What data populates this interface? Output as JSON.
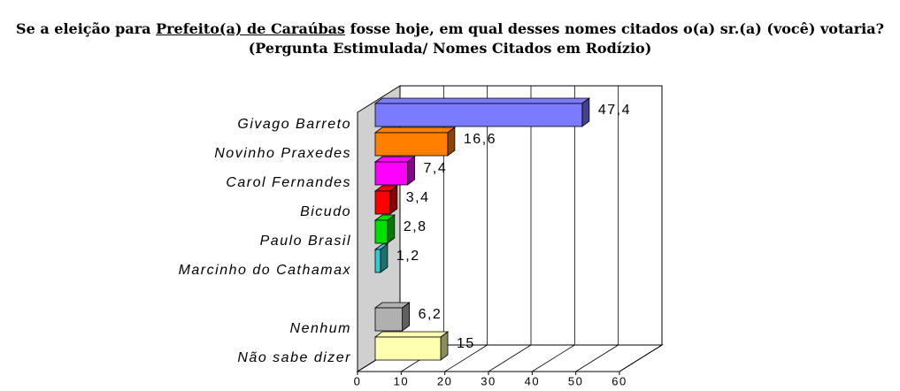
{
  "chart_data": {
    "type": "bar3d-horizontal",
    "title": [
      "Se a eleição para ",
      "Prefeito(a) de Caraúbas",
      " fosse hoje, em qual desses nomes citados o(a) sr.(a) (você) votaria?"
    ],
    "subtitle": "(Pergunta Estimulada/ Nomes Citados em Rodízio)",
    "categories": [
      "Givago Barreto",
      "Novinho Praxedes",
      "Carol Fernandes",
      "Bicudo",
      "Paulo Brasil",
      "Marcinho do Cathamax",
      null,
      "Nenhum",
      "Não sabe dizer"
    ],
    "values": [
      47.4,
      16.6,
      7.4,
      3.4,
      2.8,
      1.2,
      null,
      6.2,
      15
    ],
    "value_labels": [
      "47,4",
      "16,6",
      "7,4",
      "3,4",
      "2,8",
      "1,2",
      null,
      "6,2",
      "15"
    ],
    "colors": [
      "#7b7bff",
      "#ff8000",
      "#ff00ff",
      "#ff0000",
      "#00e000",
      "#33cccc",
      null,
      "#b0b0b0",
      "#ffffb0"
    ],
    "xlim": [
      0,
      60
    ],
    "xticks": [
      0,
      10,
      20,
      30,
      40,
      50,
      60
    ],
    "grid": true
  }
}
